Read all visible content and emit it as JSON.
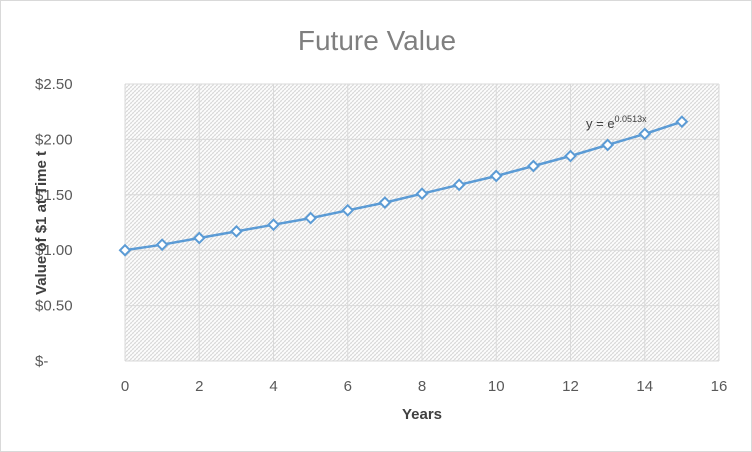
{
  "chart_data": {
    "type": "scatter",
    "title": "Future Value",
    "xlabel": "Years",
    "ylabel": "Value of $1 at Time t",
    "xlim": [
      0,
      16
    ],
    "ylim": [
      0,
      2.5
    ],
    "x_ticks": [
      0,
      2,
      4,
      6,
      8,
      10,
      12,
      14,
      16
    ],
    "x_tick_labels": [
      "0",
      "2",
      "4",
      "6",
      "8",
      "10",
      "12",
      "14",
      "16"
    ],
    "y_ticks": [
      0,
      0.5,
      1.0,
      1.5,
      2.0,
      2.5
    ],
    "y_tick_labels": [
      "$-",
      "$0.50",
      "$1.00",
      "$1.50",
      "$2.00",
      "$2.50"
    ],
    "grid": true,
    "legend": "none",
    "series": [
      {
        "x": [
          0,
          1,
          2,
          3,
          4,
          5,
          6,
          7,
          8,
          9,
          10,
          11,
          12,
          13,
          14,
          15
        ],
        "y": [
          1.0,
          1.05,
          1.11,
          1.17,
          1.23,
          1.29,
          1.36,
          1.43,
          1.51,
          1.59,
          1.67,
          1.76,
          1.85,
          1.95,
          2.05,
          2.16
        ],
        "color": "#5b9bd5",
        "marker": "diamond"
      }
    ],
    "trendline": {
      "label_base": "y = e",
      "label_exponent": "0.0513x"
    }
  }
}
